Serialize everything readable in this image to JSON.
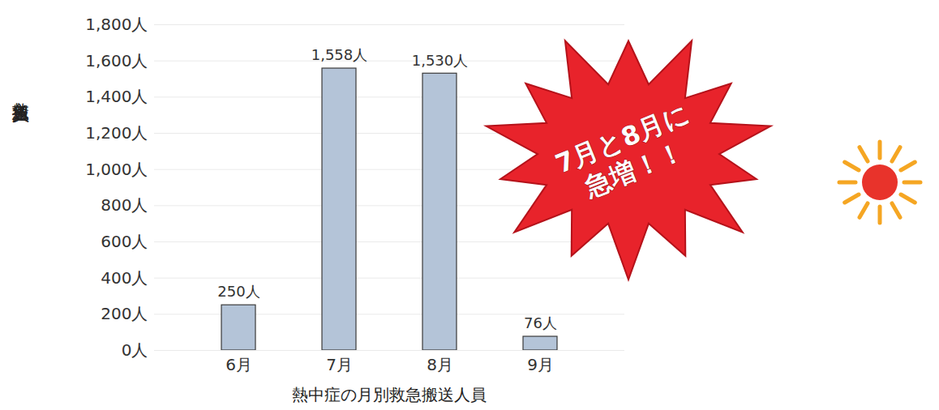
{
  "chart_data": {
    "type": "bar",
    "title": "熱中症の月別救急搬送人員",
    "y_label": "救急搬送人員",
    "categories": [
      "6月",
      "7月",
      "8月",
      "9月"
    ],
    "values": [
      250,
      1558,
      1530,
      76
    ],
    "value_labels": [
      "250人",
      "1,558人",
      "1,530人",
      "76人"
    ],
    "data_labels": true,
    "color": "#b4c4d8",
    "ylim": [
      0,
      1800
    ],
    "yticks": [
      {
        "value": 0,
        "label": "0人"
      },
      {
        "value": 200,
        "label": "200人"
      },
      {
        "value": 400,
        "label": "400人"
      },
      {
        "value": 600,
        "label": "600人"
      },
      {
        "value": 800,
        "label": "800人"
      },
      {
        "value": 1000,
        "label": "1,000人"
      },
      {
        "value": 1200,
        "label": "1,200人"
      },
      {
        "value": 1400,
        "label": "1,400人"
      },
      {
        "value": 1600,
        "label": "1,600人"
      },
      {
        "value": 1800,
        "label": "1,800人"
      }
    ],
    "grid": true,
    "annotations": [
      "7月と8月に\n急増！！"
    ]
  }
}
